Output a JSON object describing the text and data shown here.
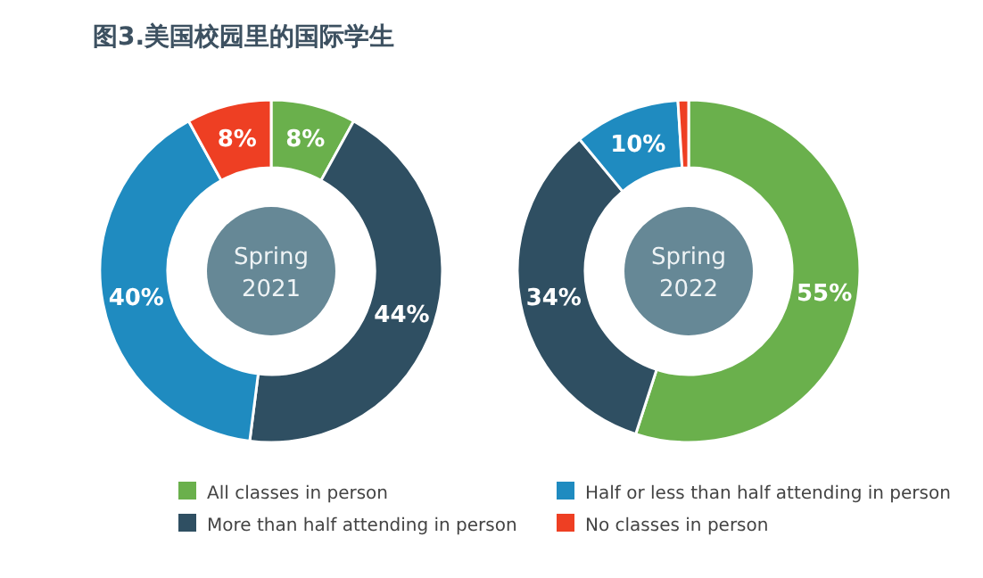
{
  "chart_data": [
    {
      "type": "donut",
      "title": "图3.美国校园里的国际学生",
      "categories": [
        "All classes in person",
        "More than half attending in person",
        "Half or less than half attending in person",
        "No classes in person"
      ],
      "values": [
        8,
        44,
        40,
        8
      ],
      "colors": [
        "#6ab04c",
        "#2f4f62",
        "#1f8bc0",
        "#ee3f23"
      ],
      "value_labels": [
        "8%",
        "44%",
        "40%",
        "8%"
      ],
      "annotations": [
        "Spring\n2021"
      ],
      "legend": "bottom"
    },
    {
      "type": "donut",
      "categories": [
        null,
        null,
        null,
        null
      ],
      "values": [
        55,
        34,
        10,
        1
      ],
      "colors": [
        "#6ab04c",
        "#2f4f62",
        "#1f8bc0",
        "#ee3f23"
      ],
      "value_labels": [
        "55%",
        "34%",
        "10%",
        null
      ],
      "annotations": [
        "Spring\n2022"
      ]
    }
  ]
}
